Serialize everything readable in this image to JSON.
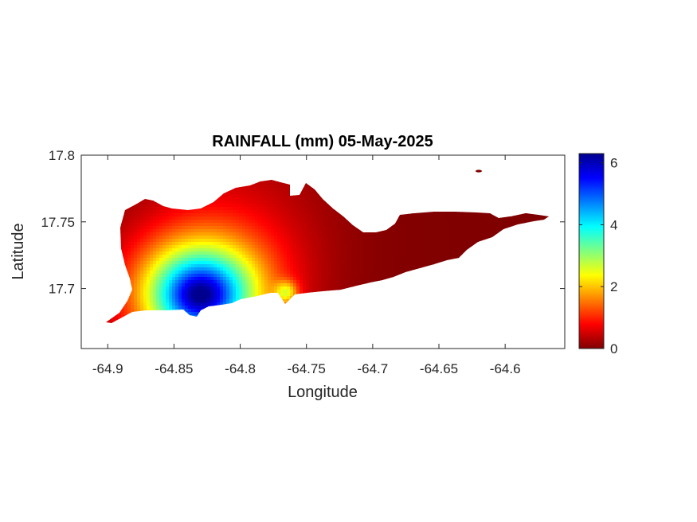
{
  "chart_data": {
    "type": "heatmap",
    "title": "RAINFALL (mm) 05-May-2025",
    "xlabel": "Longitude",
    "ylabel": "Latitude",
    "xlim": [
      -64.92,
      -64.555
    ],
    "ylim": [
      17.655,
      17.8
    ],
    "xticks": [
      "-64.9",
      "-64.85",
      "-64.8",
      "-64.75",
      "-64.7",
      "-64.65",
      "-64.6"
    ],
    "yticks": [
      "17.7",
      "17.75",
      "17.8"
    ],
    "colorbar": {
      "min": 0,
      "max": 6.3,
      "ticks": [
        "0",
        "2",
        "4",
        "6"
      ],
      "colormap": "jet"
    },
    "grid": false,
    "max_rainfall_location": {
      "lon": -64.83,
      "lat": 17.695,
      "value": 6.2
    },
    "secondary_high_location": {
      "lon": -64.765,
      "lat": 17.697,
      "value": 1.6
    }
  }
}
